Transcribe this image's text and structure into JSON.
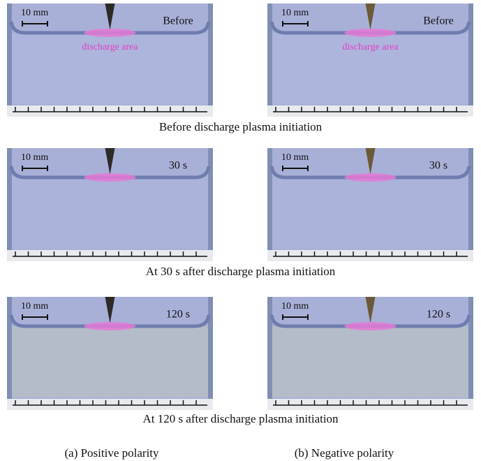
{
  "rows": [
    {
      "caption": "Before discharge plasma initiation",
      "panels": [
        {
          "scale": "10 mm",
          "time": "Before",
          "annotation": "discharge area"
        },
        {
          "scale": "10 mm",
          "time": "Before",
          "annotation": "discharge  area"
        }
      ]
    },
    {
      "caption": "At 30 s after discharge plasma initiation",
      "panels": [
        {
          "scale": "10 mm",
          "time": "30  s"
        },
        {
          "scale": "10 mm",
          "time": "30  s"
        }
      ]
    },
    {
      "caption": "At 120 s after discharge plasma initiation",
      "panels": [
        {
          "scale": "10 mm",
          "time": "120 s"
        },
        {
          "scale": "10 mm",
          "time": "120 s"
        }
      ]
    }
  ],
  "columns": [
    "(a) Positive polarity",
    "(b) Negative polarity"
  ]
}
